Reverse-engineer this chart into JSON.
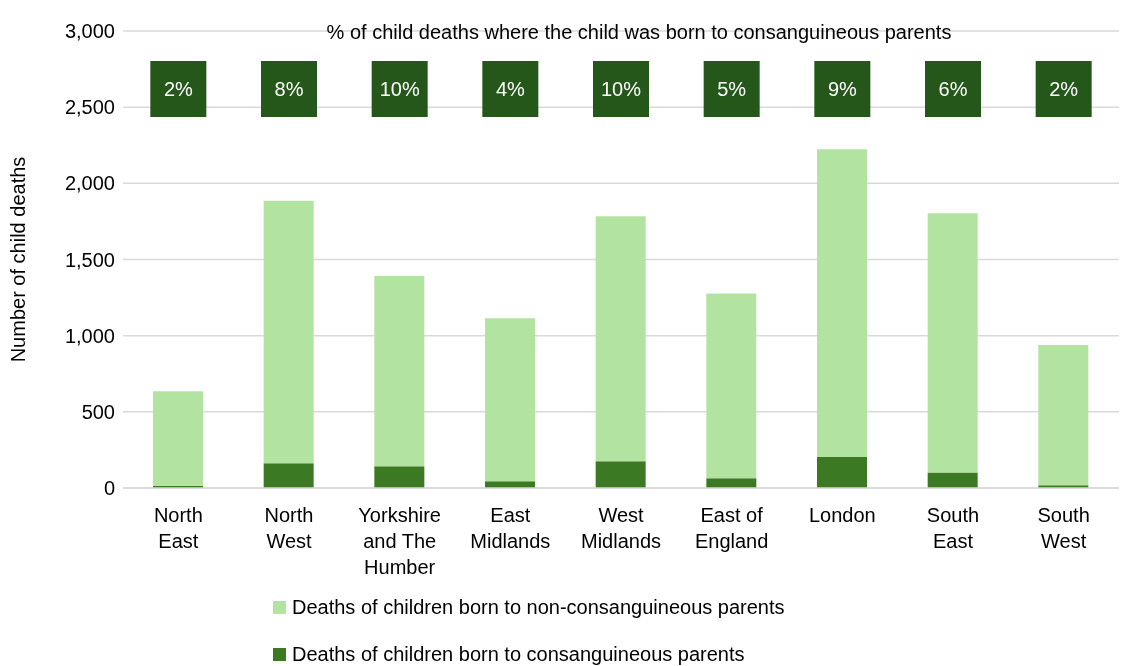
{
  "chart_data": {
    "type": "bar",
    "stacked": true,
    "subtitle": "% of child deaths where the child was born to consanguineous parents",
    "ylabel": "Number of child deaths",
    "categories": [
      "North East",
      "North West",
      "Yorkshire and The Humber",
      "East Midlands",
      "West Midlands",
      "East of England",
      "London",
      "South East",
      "South West"
    ],
    "series": [
      {
        "name": "Deaths of children born to consanguineous parents",
        "color": "#3b7a22",
        "values": [
          15,
          162,
          142,
          45,
          176,
          64,
          203,
          101,
          18
        ]
      },
      {
        "name": "Deaths of children born to non-consanguineous parents",
        "color": "#b3e3a1",
        "values": [
          620,
          1723,
          1250,
          1070,
          1608,
          1213,
          2020,
          1703,
          921
        ]
      }
    ],
    "ylim": [
      0,
      3000
    ],
    "yticks": [
      {
        "value": 0,
        "label": "0"
      },
      {
        "value": 500,
        "label": "500"
      },
      {
        "value": 1000,
        "label": "1,000"
      },
      {
        "value": 1500,
        "label": "1,500"
      },
      {
        "value": 2000,
        "label": "2,000"
      },
      {
        "value": 2500,
        "label": "2,500"
      },
      {
        "value": 3000,
        "label": "3,000"
      }
    ],
    "grid": "y",
    "legend": "bottom",
    "annotations": [
      "2%",
      "8%",
      "10%",
      "4%",
      "10%",
      "5%",
      "9%",
      "6%",
      "2%"
    ]
  }
}
